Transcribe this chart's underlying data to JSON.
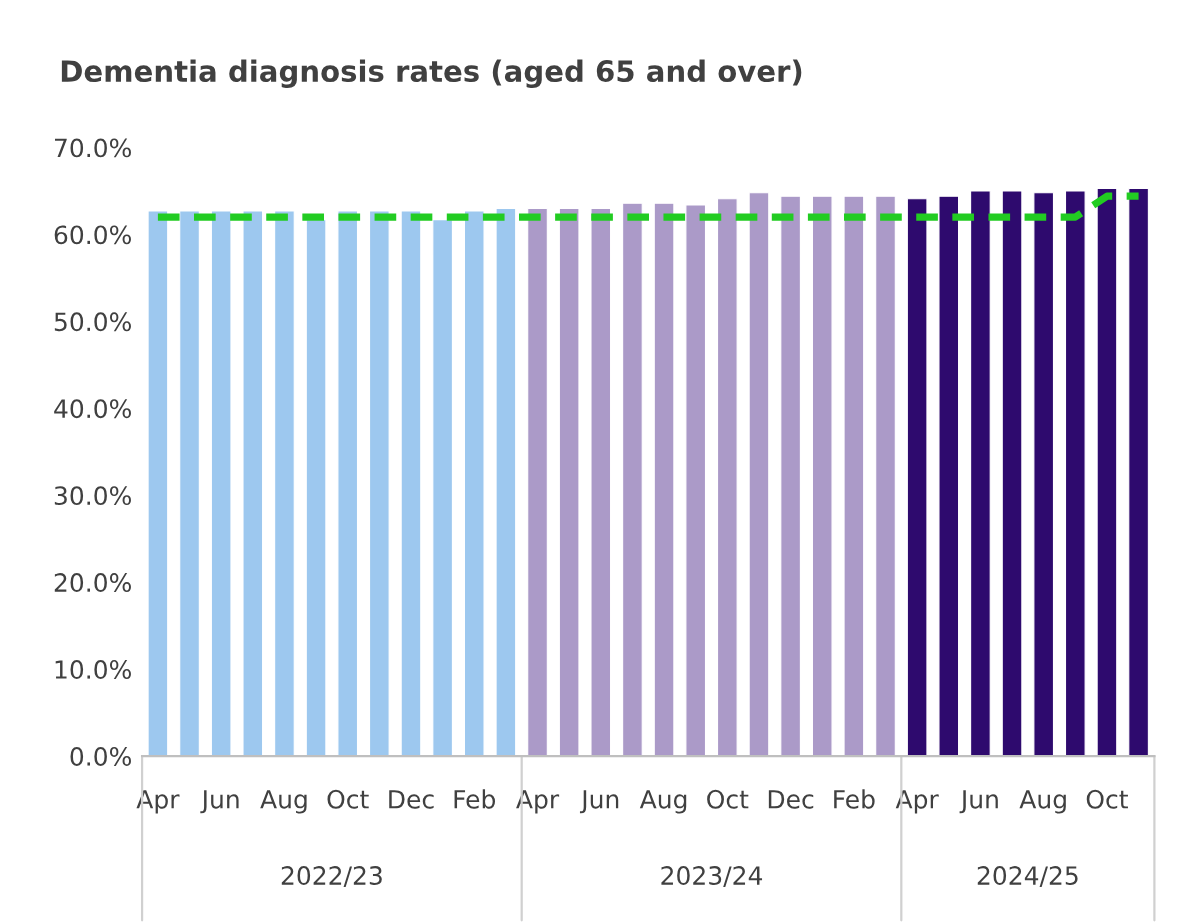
{
  "chart_data": {
    "type": "bar",
    "title": "Dementia diagnosis rates (aged 65 and over)",
    "categories": [
      "Apr",
      null,
      "Jun",
      null,
      "Aug",
      null,
      "Oct",
      null,
      "Dec",
      null,
      "Feb",
      null,
      "Apr",
      null,
      "Jun",
      null,
      "Aug",
      null,
      "Oct",
      null,
      "Dec",
      null,
      "Feb",
      null,
      "Apr",
      null,
      "Jun",
      null,
      "Aug",
      null,
      "Oct",
      null
    ],
    "series": [
      {
        "color": "#9dc8ef",
        "values": [
          62.7,
          62.7,
          62.7,
          62.7,
          62.7,
          61.7,
          62.7,
          62.7,
          62.7,
          61.7,
          62.7,
          63.0,
          null,
          null,
          null,
          null,
          null,
          null,
          null,
          null,
          null,
          null,
          null,
          null,
          null,
          null,
          null,
          null,
          null,
          null,
          null,
          null
        ]
      },
      {
        "color": "#ab9ac8",
        "values": [
          null,
          null,
          null,
          null,
          null,
          null,
          null,
          null,
          null,
          null,
          null,
          null,
          63.0,
          63.0,
          63.0,
          63.6,
          63.6,
          63.4,
          64.1,
          64.8,
          64.4,
          64.4,
          64.4,
          64.4,
          null,
          null,
          null,
          null,
          null,
          null,
          null,
          null
        ]
      },
      {
        "color": "#2e0a6e",
        "values": [
          null,
          null,
          null,
          null,
          null,
          null,
          null,
          null,
          null,
          null,
          null,
          null,
          null,
          null,
          null,
          null,
          null,
          null,
          null,
          null,
          null,
          null,
          null,
          null,
          64.1,
          64.4,
          65.0,
          65.0,
          64.8,
          65.0,
          65.3,
          65.3
        ]
      },
      {
        "type": "line",
        "color": "#22cc22",
        "line_style": "dashed",
        "marker": "none",
        "values": [
          62.0,
          62.0,
          62.0,
          62.0,
          62.0,
          62.0,
          62.0,
          62.0,
          62.0,
          62.0,
          62.0,
          62.0,
          62.0,
          62.0,
          62.0,
          62.0,
          62.0,
          62.0,
          62.0,
          62.0,
          62.0,
          62.0,
          62.0,
          62.0,
          62.0,
          62.0,
          62.0,
          62.0,
          62.0,
          62.0,
          64.4,
          64.4
        ]
      }
    ],
    "ylim": [
      0,
      70
    ],
    "yticks": [
      {
        "value": 0,
        "label": "0.0%"
      },
      {
        "value": 10,
        "label": "10.0%"
      },
      {
        "value": 20,
        "label": "20.0%"
      },
      {
        "value": 30,
        "label": "30.0%"
      },
      {
        "value": 40,
        "label": "40.0%"
      },
      {
        "value": 50,
        "label": "50.0%"
      },
      {
        "value": 60,
        "label": "60.0%"
      },
      {
        "value": 70,
        "label": "70.0%"
      }
    ],
    "annotations": [
      "2022/23",
      "2023/24",
      "2024/25"
    ],
    "grid": false,
    "legend": false
  }
}
